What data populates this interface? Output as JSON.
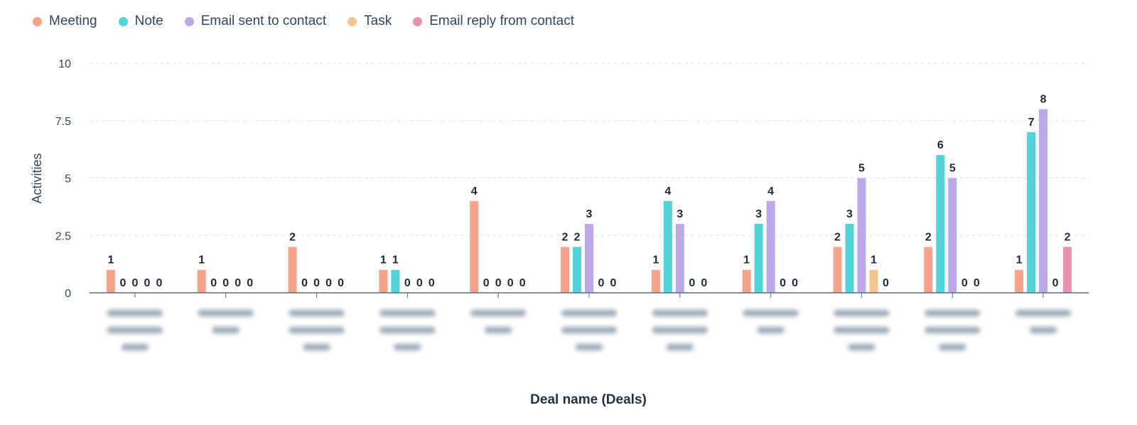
{
  "chart_data": {
    "type": "bar",
    "title": "",
    "xlabel": "Deal name (Deals)",
    "ylabel": "Activities",
    "ylim": [
      0,
      10
    ],
    "yticks": [
      0,
      2.5,
      5,
      7.5,
      10
    ],
    "grid": true,
    "legend_position": "top-left",
    "categories": [
      "",
      "",
      "",
      "",
      "",
      "",
      "",
      "",
      "",
      "",
      ""
    ],
    "series": [
      {
        "name": "Meeting",
        "color": "#f8a48c",
        "values": [
          1,
          1,
          2,
          1,
          4,
          2,
          1,
          1,
          2,
          2,
          1
        ]
      },
      {
        "name": "Note",
        "color": "#51d3d9",
        "values": [
          0,
          0,
          0,
          1,
          0,
          2,
          4,
          3,
          3,
          6,
          7
        ]
      },
      {
        "name": "Email sent to contact",
        "color": "#bda8e9",
        "values": [
          0,
          0,
          0,
          0,
          0,
          3,
          3,
          4,
          5,
          5,
          8
        ]
      },
      {
        "name": "Task",
        "color": "#f5c48c",
        "values": [
          0,
          0,
          0,
          0,
          0,
          0,
          0,
          0,
          1,
          0,
          0
        ]
      },
      {
        "name": "Email reply from contact",
        "color": "#ea90b1",
        "values": [
          0,
          0,
          0,
          0,
          0,
          0,
          0,
          0,
          0,
          0,
          2
        ]
      }
    ]
  }
}
